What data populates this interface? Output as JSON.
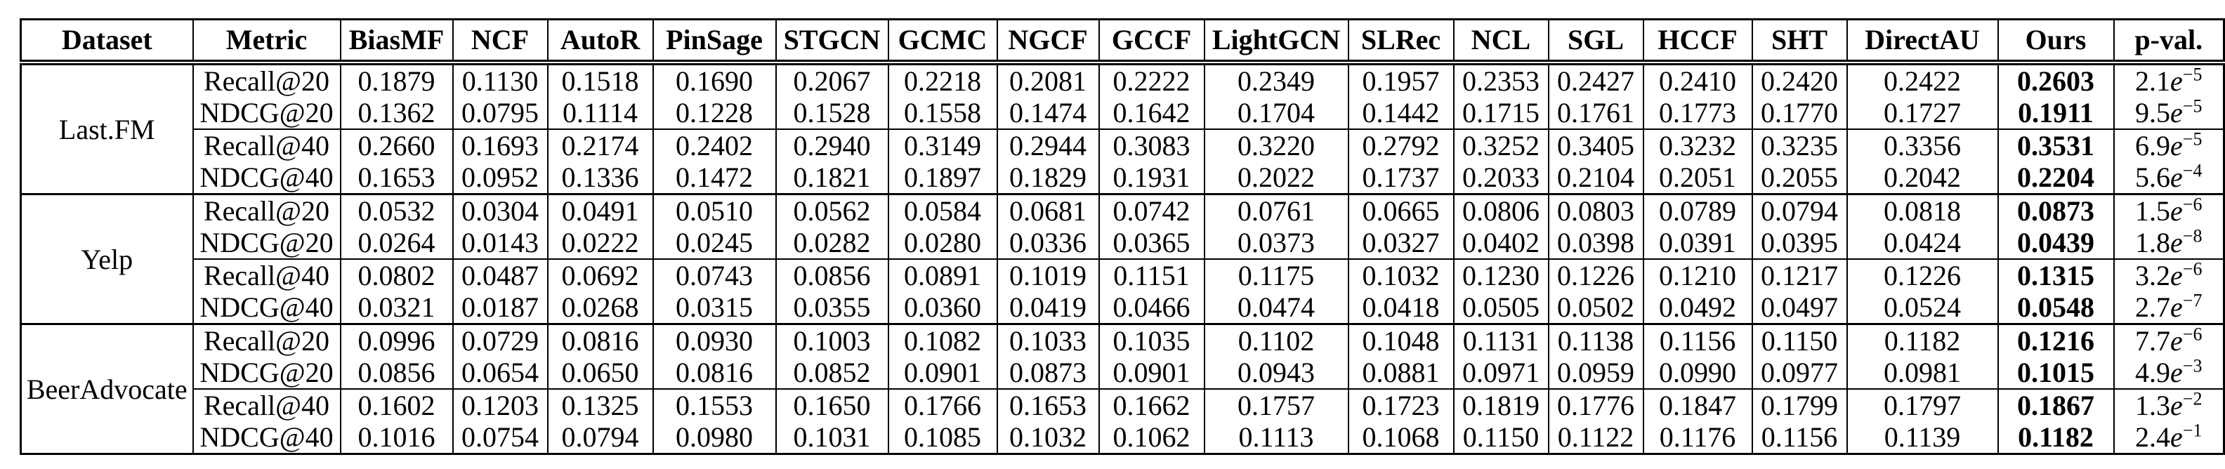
{
  "table": {
    "columns": [
      "Dataset",
      "Metric",
      "BiasMF",
      "NCF",
      "AutoR",
      "PinSage",
      "STGCN",
      "GCMC",
      "NGCF",
      "GCCF",
      "LightGCN",
      "SLRec",
      "NCL",
      "SGL",
      "HCCF",
      "SHT",
      "DirectAU",
      "Ours",
      "p-val."
    ],
    "groups": [
      {
        "dataset": "Last.FM",
        "rows": [
          {
            "metric": "Recall@20",
            "values": [
              "0.1879",
              "0.1130",
              "0.1518",
              "0.1690",
              "0.2067",
              "0.2218",
              "0.2081",
              "0.2222",
              "0.2349",
              "0.1957",
              "0.2353",
              "0.2427",
              "0.2410",
              "0.2420",
              "0.2422"
            ],
            "ours": "0.2603",
            "pval": "2.1e−5"
          },
          {
            "metric": "NDCG@20",
            "values": [
              "0.1362",
              "0.0795",
              "0.1114",
              "0.1228",
              "0.1528",
              "0.1558",
              "0.1474",
              "0.1642",
              "0.1704",
              "0.1442",
              "0.1715",
              "0.1761",
              "0.1773",
              "0.1770",
              "0.1727"
            ],
            "ours": "0.1911",
            "pval": "9.5e−5"
          },
          {
            "metric": "Recall@40",
            "values": [
              "0.2660",
              "0.1693",
              "0.2174",
              "0.2402",
              "0.2940",
              "0.3149",
              "0.2944",
              "0.3083",
              "0.3220",
              "0.2792",
              "0.3252",
              "0.3405",
              "0.3232",
              "0.3235",
              "0.3356"
            ],
            "ours": "0.3531",
            "pval": "6.9e−5"
          },
          {
            "metric": "NDCG@40",
            "values": [
              "0.1653",
              "0.0952",
              "0.1336",
              "0.1472",
              "0.1821",
              "0.1897",
              "0.1829",
              "0.1931",
              "0.2022",
              "0.1737",
              "0.2033",
              "0.2104",
              "0.2051",
              "0.2055",
              "0.2042"
            ],
            "ours": "0.2204",
            "pval": "5.6e−4"
          }
        ]
      },
      {
        "dataset": "Yelp",
        "rows": [
          {
            "metric": "Recall@20",
            "values": [
              "0.0532",
              "0.0304",
              "0.0491",
              "0.0510",
              "0.0562",
              "0.0584",
              "0.0681",
              "0.0742",
              "0.0761",
              "0.0665",
              "0.0806",
              "0.0803",
              "0.0789",
              "0.0794",
              "0.0818"
            ],
            "ours": "0.0873",
            "pval": "1.5e−6"
          },
          {
            "metric": "NDCG@20",
            "values": [
              "0.0264",
              "0.0143",
              "0.0222",
              "0.0245",
              "0.0282",
              "0.0280",
              "0.0336",
              "0.0365",
              "0.0373",
              "0.0327",
              "0.0402",
              "0.0398",
              "0.0391",
              "0.0395",
              "0.0424"
            ],
            "ours": "0.0439",
            "pval": "1.8e−8"
          },
          {
            "metric": "Recall@40",
            "values": [
              "0.0802",
              "0.0487",
              "0.0692",
              "0.0743",
              "0.0856",
              "0.0891",
              "0.1019",
              "0.1151",
              "0.1175",
              "0.1032",
              "0.1230",
              "0.1226",
              "0.1210",
              "0.1217",
              "0.1226"
            ],
            "ours": "0.1315",
            "pval": "3.2e−6"
          },
          {
            "metric": "NDCG@40",
            "values": [
              "0.0321",
              "0.0187",
              "0.0268",
              "0.0315",
              "0.0355",
              "0.0360",
              "0.0419",
              "0.0466",
              "0.0474",
              "0.0418",
              "0.0505",
              "0.0502",
              "0.0492",
              "0.0497",
              "0.0524"
            ],
            "ours": "0.0548",
            "pval": "2.7e−7"
          }
        ]
      },
      {
        "dataset": "BeerAdvocate",
        "rows": [
          {
            "metric": "Recall@20",
            "values": [
              "0.0996",
              "0.0729",
              "0.0816",
              "0.0930",
              "0.1003",
              "0.1082",
              "0.1033",
              "0.1035",
              "0.1102",
              "0.1048",
              "0.1131",
              "0.1138",
              "0.1156",
              "0.1150",
              "0.1182"
            ],
            "ours": "0.1216",
            "pval": "7.7e−6"
          },
          {
            "metric": "NDCG@20",
            "values": [
              "0.0856",
              "0.0654",
              "0.0650",
              "0.0816",
              "0.0852",
              "0.0901",
              "0.0873",
              "0.0901",
              "0.0943",
              "0.0881",
              "0.0971",
              "0.0959",
              "0.0990",
              "0.0977",
              "0.0981"
            ],
            "ours": "0.1015",
            "pval": "4.9e−3"
          },
          {
            "metric": "Recall@40",
            "values": [
              "0.1602",
              "0.1203",
              "0.1325",
              "0.1553",
              "0.1650",
              "0.1766",
              "0.1653",
              "0.1662",
              "0.1757",
              "0.1723",
              "0.1819",
              "0.1776",
              "0.1847",
              "0.1799",
              "0.1797"
            ],
            "ours": "0.1867",
            "pval": "1.3e−2"
          },
          {
            "metric": "NDCG@40",
            "values": [
              "0.1016",
              "0.0754",
              "0.0794",
              "0.0980",
              "0.1031",
              "0.1085",
              "0.1032",
              "0.1062",
              "0.1113",
              "0.1068",
              "0.1150",
              "0.1122",
              "0.1176",
              "0.1156",
              "0.1139"
            ],
            "ours": "0.1182",
            "pval": "2.4e−1"
          }
        ]
      }
    ]
  }
}
